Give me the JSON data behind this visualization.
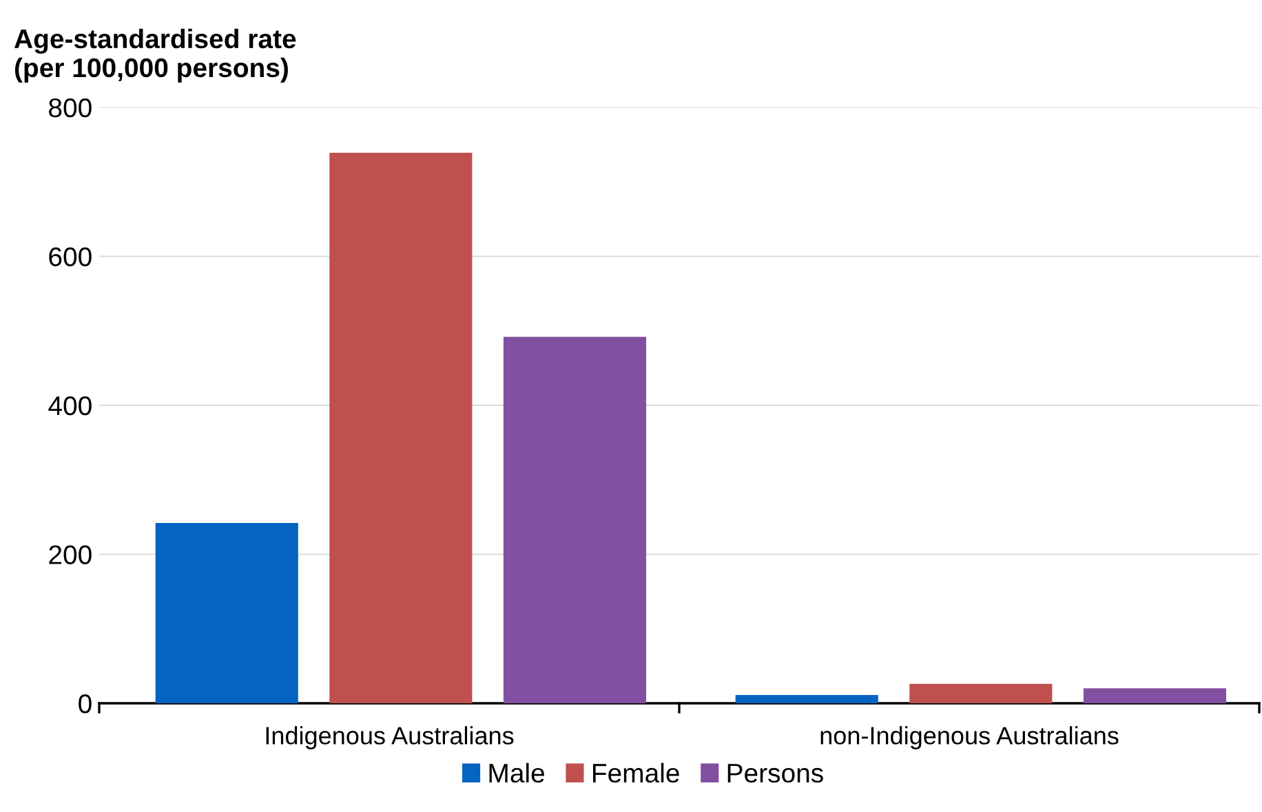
{
  "chart_data": {
    "type": "bar",
    "ylabel": "Age-standardised rate\n(per 100,000 persons)",
    "categories": [
      "Indigenous Australians",
      "non-Indigenous Australians"
    ],
    "series": [
      {
        "name": "Male",
        "color": "#0563c1",
        "values": [
          242,
          11
        ]
      },
      {
        "name": "Female",
        "color": "#c0504d",
        "values": [
          739,
          26
        ]
      },
      {
        "name": "Persons",
        "color": "#8250a0",
        "values": [
          492,
          20
        ]
      }
    ],
    "ylim": [
      0,
      800
    ],
    "yticks": [
      0,
      200,
      400,
      600,
      800
    ],
    "grid": "y",
    "legend": "bottom"
  }
}
